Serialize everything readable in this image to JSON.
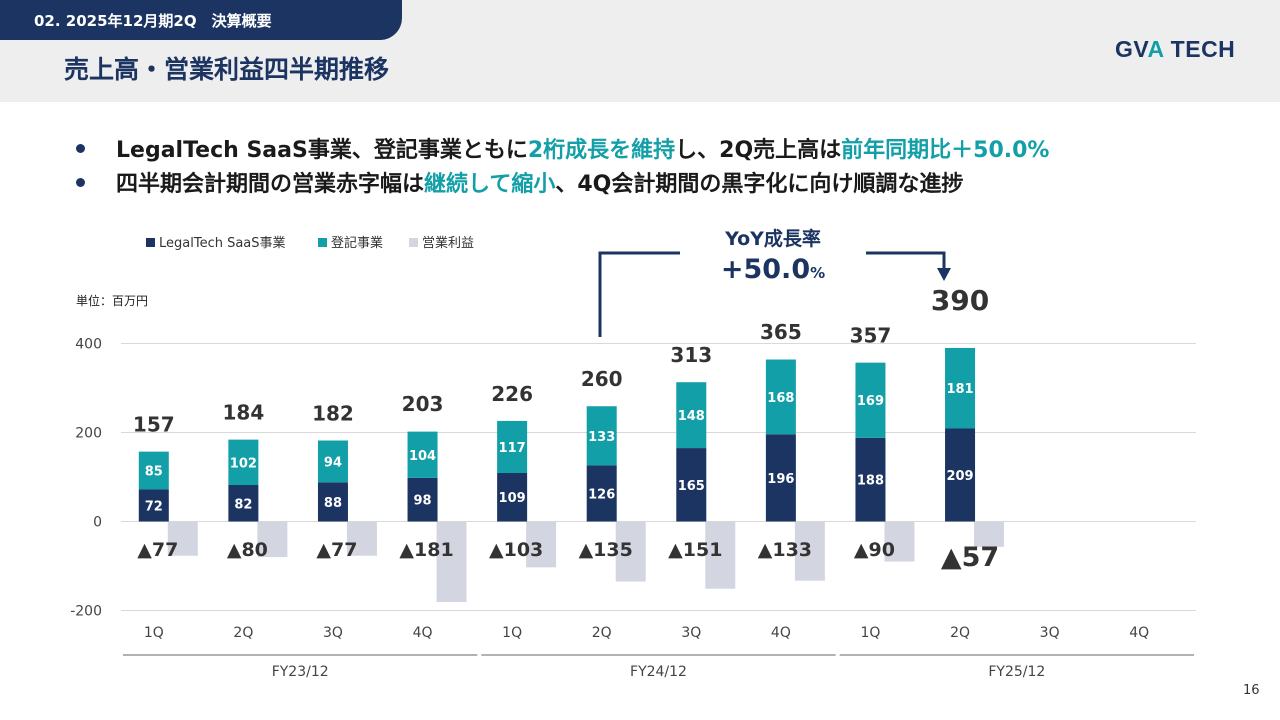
{
  "header": {
    "section": "02. 2025年12月期2Q　決算概要",
    "title": "売上高・営業利益四半期推移",
    "logo_part1": "GV",
    "logo_part2": "A",
    "logo_part3": " TECH"
  },
  "bullets": [
    {
      "t1": "LegalTech SaaS事業、登記事業ともに",
      "t2": "2桁成長を維持",
      "t3": "し、2Q売上高は",
      "t4": "前年同期比＋50.0%"
    },
    {
      "t1": "四半期会計期間の営業赤字幅は",
      "t2": "継続して縮小",
      "t3": "、4Q会計期間の黒字化に向け順調な進捗"
    }
  ],
  "callout": {
    "line1": "YoY成長率",
    "line2": "+50.0",
    "unit": "%"
  },
  "page_number": "16",
  "colors": {
    "navy": "#1b3461",
    "teal": "#129fa8",
    "gray": "#d3d6e0"
  },
  "chart_data": {
    "type": "bar",
    "stacked": true,
    "unit_label": "単位：百万円",
    "categories": [
      "1Q",
      "2Q",
      "3Q",
      "4Q",
      "1Q",
      "2Q",
      "3Q",
      "4Q",
      "1Q",
      "2Q",
      "3Q",
      "4Q"
    ],
    "fiscal_years": [
      {
        "label": "FY23/12",
        "quarters": 4
      },
      {
        "label": "FY24/12",
        "quarters": 4
      },
      {
        "label": "FY25/12",
        "quarters": 4
      }
    ],
    "series": [
      {
        "name": "LegalTech SaaS事業",
        "color": "#1b3461",
        "values": [
          72,
          82,
          88,
          98,
          109,
          126,
          165,
          196,
          188,
          209,
          null,
          null
        ]
      },
      {
        "name": "登記事業",
        "color": "#129fa8",
        "values": [
          85,
          102,
          94,
          104,
          117,
          133,
          148,
          168,
          169,
          181,
          null,
          null
        ]
      },
      {
        "name": "営業利益",
        "color": "#d3d6e0",
        "values": [
          -77,
          -80,
          -77,
          -181,
          -103,
          -135,
          -151,
          -133,
          -90,
          -57,
          null,
          null
        ]
      }
    ],
    "totals": [
      157,
      184,
      182,
      203,
      226,
      260,
      313,
      365,
      357,
      390,
      null,
      null
    ],
    "op_labels": [
      "▲77",
      "▲80",
      "▲77",
      "▲181",
      "▲103",
      "▲135",
      "▲151",
      "▲133",
      "▲90",
      "▲57",
      "",
      ""
    ],
    "ylim": [
      -200,
      400
    ],
    "yticks": [
      400,
      200,
      0,
      -200
    ],
    "legend_position": "top-left",
    "grid": true
  }
}
